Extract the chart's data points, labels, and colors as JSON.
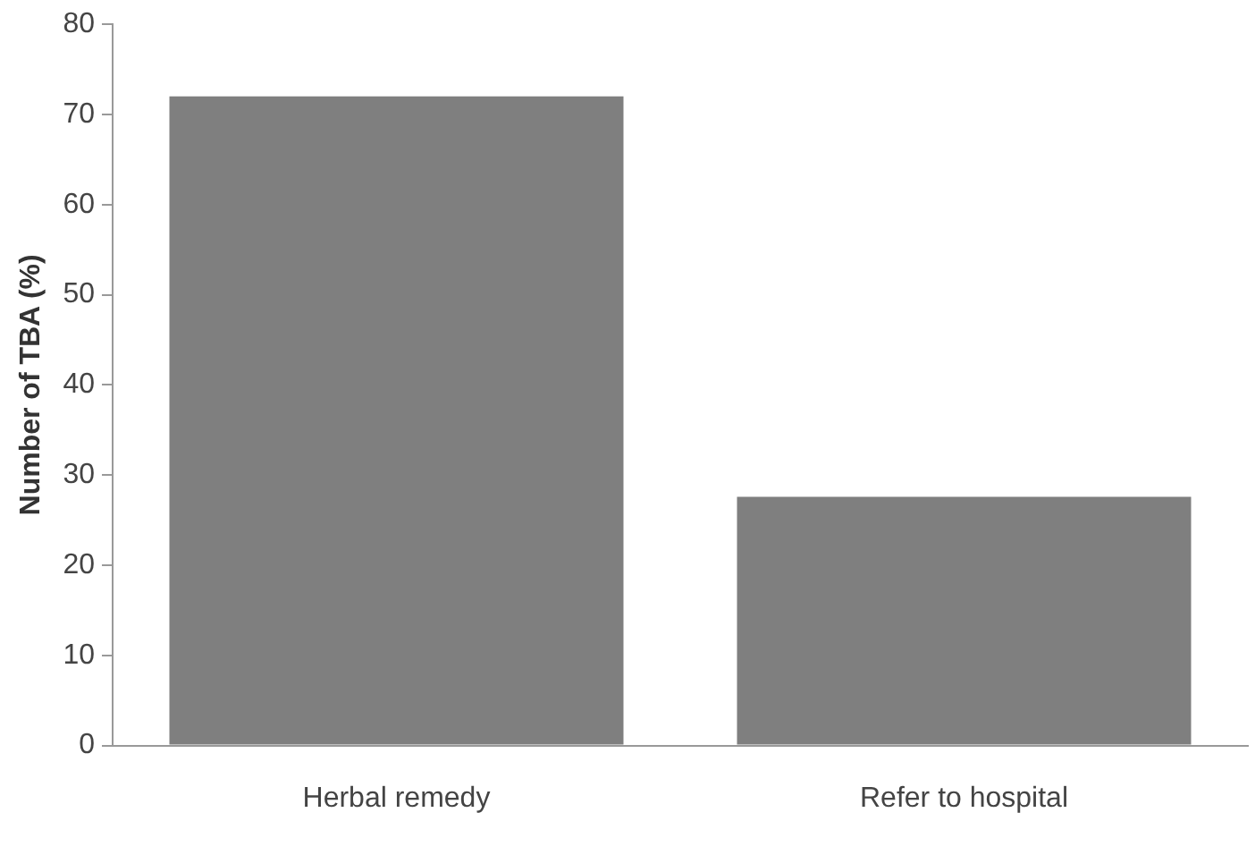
{
  "chart_data": {
    "type": "bar",
    "ylabel": "Number of TBA (%)",
    "categories": [
      "Herbal remedy",
      "Refer to hospital"
    ],
    "values": [
      72,
      27.6
    ],
    "color": "#7f7f7f",
    "ylim": [
      0,
      80
    ],
    "yticks": [
      0,
      10,
      20,
      30,
      40,
      50,
      60,
      70,
      80
    ],
    "grid": false,
    "legend": false
  }
}
